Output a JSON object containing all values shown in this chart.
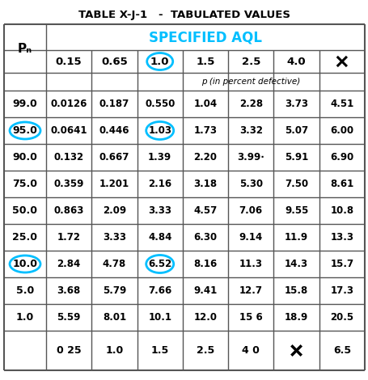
{
  "title": "TABLE X-J-1   -  TABULATED VALUES",
  "header_aql": "SPECIFIED AQL",
  "col_header_note": "p (in percent defective)",
  "aql_cols": [
    "0.15",
    "0.65",
    "1.0",
    "1.5",
    "2.5",
    "4.0",
    "X"
  ],
  "pa_rows": [
    "99.0",
    "95.0",
    "90.0",
    "75.0",
    "50.0",
    "25.0",
    "10.0",
    "5.0",
    "1.0"
  ],
  "bottom_row": [
    "0 25",
    "1.0",
    "1.5",
    "2.5",
    "4 0",
    "X",
    "6.5"
  ],
  "table_data": [
    [
      "0.0126",
      "0.187",
      "0.550",
      "1.04",
      "2.28",
      "3.73",
      "4.51"
    ],
    [
      "0.0641",
      "0.446",
      "1.03",
      "1.73",
      "3.32",
      "5.07",
      "6.00"
    ],
    [
      "0.132",
      "0.667",
      "1.39",
      "2.20",
      "3.99·",
      "5.91",
      "6.90"
    ],
    [
      "0.359",
      "1.201",
      "2.16",
      "3.18",
      "5.30",
      "7.50",
      "8.61"
    ],
    [
      "0.863",
      "2.09",
      "3.33",
      "4.57",
      "7.06",
      "9.55",
      "10.8"
    ],
    [
      "1.72",
      "3.33",
      "4.84",
      "6.30",
      "9.14",
      "11.9",
      "13.3"
    ],
    [
      "2.84",
      "4.78",
      "6.52",
      "8.16",
      "11.3",
      "14.3",
      "15.7"
    ],
    [
      "3.68",
      "5.79",
      "7.66",
      "9.41",
      "12.7",
      "15.8",
      "17.3"
    ],
    [
      "5.59",
      "8.01",
      "10.1",
      "12.0",
      "15 6",
      "18.9",
      "20.5"
    ]
  ],
  "circle_aql_col": 2,
  "circled_pa_rows": [
    1,
    6
  ],
  "circled_data_cells": [
    [
      1,
      2
    ],
    [
      6,
      2
    ]
  ],
  "background_color": "#ffffff",
  "header_color": "#00bfff",
  "text_color": "#000000",
  "circle_color": "#00bfff",
  "grid_color": "#555555"
}
